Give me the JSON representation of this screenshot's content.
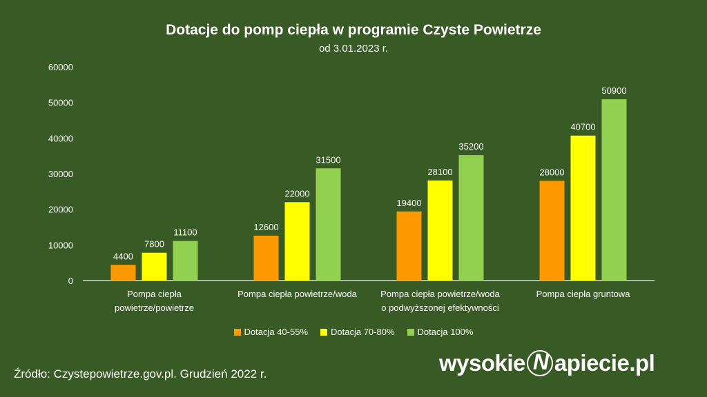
{
  "chart_data": {
    "type": "bar",
    "title": "Dotacje do pomp ciepła w programie Czyste Powietrze",
    "subtitle": "od 3.01.2023 r.",
    "categories": [
      [
        "Pompa ciepła",
        "powietrze/powietrze"
      ],
      [
        "Pompa ciepła powietrze/woda"
      ],
      [
        "Pompa ciepła powietrze/woda",
        "o podwyższonej efektywności"
      ],
      [
        "Pompa ciepła gruntowa"
      ]
    ],
    "series": [
      {
        "name": "Dotacja 40-55%",
        "color": "#ff9900",
        "values": [
          4400,
          12600,
          19400,
          28000
        ]
      },
      {
        "name": "Dotacja 70-80%",
        "color": "#ffff00",
        "values": [
          7800,
          22000,
          28100,
          40700
        ]
      },
      {
        "name": "Dotacja 100%",
        "color": "#92d050",
        "values": [
          11100,
          31500,
          35200,
          50900
        ]
      }
    ],
    "ylim": [
      0,
      60000
    ],
    "yticks": [
      "0",
      "10000",
      "20000",
      "30000",
      "40000",
      "50000",
      "60000"
    ],
    "grid": false,
    "legend_position": "bottom",
    "data_labels": true
  },
  "footer": {
    "source": "Źródło:  Czystepowietrze.gov.pl. Grudzień 2022 r.",
    "logo_left": "wysokie",
    "logo_mark": "N",
    "logo_right": "apiecie.pl"
  }
}
